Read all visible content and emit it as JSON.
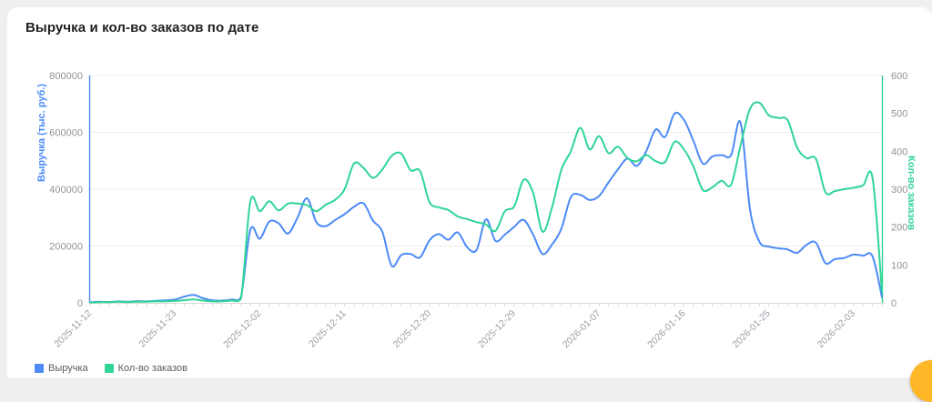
{
  "page": {
    "title": "Выручка и кол-во заказов по дате"
  },
  "legend": {
    "items": [
      {
        "label": "Выручка",
        "color": "#4C8AF7"
      },
      {
        "label": "Кол-во заказов",
        "color": "#2FD596"
      }
    ]
  },
  "fab_color": "#FFB627",
  "chart_data": {
    "type": "line",
    "title": "Выручка и кол-во заказов по дате",
    "smooth": true,
    "grid": true,
    "legend_position": "bottom-left",
    "x_axis": {
      "n_points": 85,
      "tick_indices": [
        0,
        9,
        18,
        27,
        36,
        45,
        54,
        63,
        72,
        81
      ],
      "tick_labels": [
        "2025-11-12",
        "2025-11-23",
        "2025-12-02",
        "2025-12-11",
        "2025-12-20",
        "2025-12-29",
        "2026-01-07",
        "2026-01-16",
        "2026-01-25",
        "2026-02-03"
      ]
    },
    "y_left": {
      "name": "Выручка (тыс. руб.)",
      "min": 0,
      "max": 800000,
      "tick_labels": [
        "0",
        "200000",
        "400000",
        "600000",
        "800000"
      ],
      "color": "#4C8AF7"
    },
    "y_right": {
      "name": "Кол-во заказов",
      "min": 0,
      "max": 600,
      "tick_labels": [
        "0",
        "100",
        "200",
        "300",
        "400",
        "500",
        "600"
      ],
      "color": "#2FD596"
    },
    "series": [
      {
        "name": "Выручка",
        "axis": "left",
        "color": "#4C8AF7",
        "values": [
          2000,
          4000,
          3000,
          5000,
          4000,
          6000,
          5000,
          7000,
          9000,
          12000,
          22000,
          28000,
          16000,
          9000,
          8000,
          12000,
          20000,
          258000,
          226000,
          286000,
          280000,
          244000,
          300000,
          368000,
          284000,
          270000,
          292000,
          312000,
          338000,
          350000,
          290000,
          250000,
          130000,
          168000,
          172000,
          160000,
          220000,
          242000,
          222000,
          248000,
          196000,
          186000,
          294000,
          218000,
          240000,
          268000,
          292000,
          240000,
          172000,
          205000,
          262000,
          372000,
          380000,
          362000,
          376000,
          424000,
          470000,
          508000,
          482000,
          534000,
          610000,
          584000,
          666000,
          644000,
          570000,
          490000,
          515000,
          520000,
          520000,
          635000,
          330000,
          215000,
          198000,
          192000,
          188000,
          176000,
          204000,
          212000,
          140000,
          154000,
          158000,
          170000,
          166000,
          164000,
          20000
        ]
      },
      {
        "name": "Кол-во заказов",
        "axis": "right",
        "color": "#2FD596",
        "values": [
          1,
          2,
          2,
          3,
          2,
          3,
          3,
          4,
          4,
          5,
          7,
          9,
          6,
          4,
          4,
          6,
          10,
          268,
          242,
          268,
          244,
          262,
          262,
          258,
          242,
          259,
          272,
          300,
          368,
          356,
          330,
          352,
          388,
          394,
          350,
          348,
          266,
          252,
          245,
          228,
          221,
          213,
          207,
          190,
          242,
          255,
          325,
          290,
          188,
          252,
          352,
          400,
          462,
          405,
          440,
          395,
          412,
          382,
          374,
          390,
          374,
          372,
          425,
          405,
          360,
          298,
          305,
          322,
          312,
          415,
          512,
          528,
          495,
          488,
          482,
          410,
          382,
          380,
          292,
          295,
          300,
          304,
          310,
          330,
          30
        ]
      }
    ]
  }
}
